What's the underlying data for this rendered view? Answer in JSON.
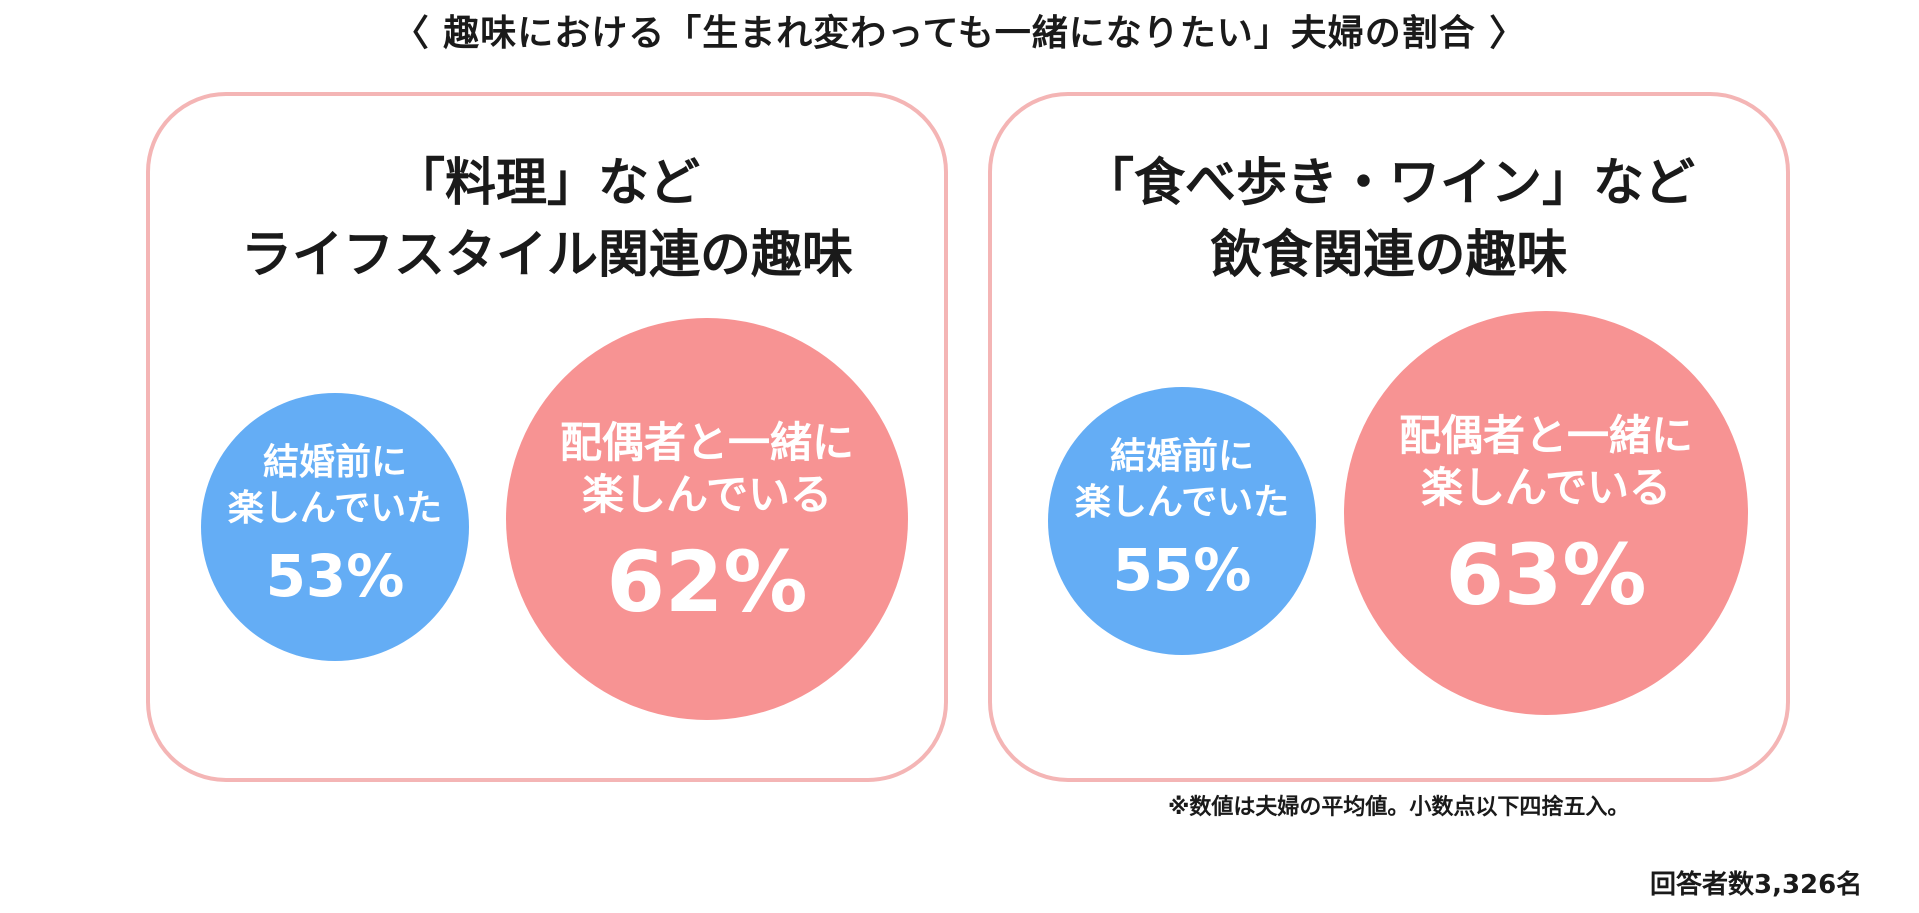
{
  "header": {
    "title": "〈 趣味における「生まれ変わっても一緒になりたい」夫婦の割合 〉"
  },
  "panels": [
    {
      "title_line1": "「料理」など",
      "title_line2": "ライフスタイル関連の趣味",
      "before_marriage": {
        "label_line1": "結婚前に",
        "label_line2": "楽しんでいた",
        "value_text": "53%"
      },
      "with_spouse": {
        "label_line1": "配偶者と一緒に",
        "label_line2": "楽しんでいる",
        "value_text": "62%"
      }
    },
    {
      "title_line1": "「食べ歩き・ワイン」など",
      "title_line2": "飲食関連の趣味",
      "before_marriage": {
        "label_line1": "結婚前に",
        "label_line2": "楽しんでいた",
        "value_text": "55%"
      },
      "with_spouse": {
        "label_line1": "配偶者と一緒に",
        "label_line2": "楽しんでいる",
        "value_text": "63%"
      }
    }
  ],
  "footer": {
    "note": "※数値は夫婦の平均値。小数点以下四捨五入。",
    "respondents": "回答者数3,326名"
  },
  "colors": {
    "blue_bubble": "#64adf5",
    "pink_bubble": "#f79393",
    "panel_border": "#f4b5b5"
  },
  "chart_data": {
    "type": "bubble",
    "unit": "%",
    "groups": [
      {
        "category": "「料理」など ライフスタイル関連の趣味",
        "points": [
          {
            "label": "結婚前に楽しんでいた",
            "value": 53
          },
          {
            "label": "配偶者と一緒に楽しんでいる",
            "value": 62
          }
        ]
      },
      {
        "category": "「食べ歩き・ワイン」など 飲食関連の趣味",
        "points": [
          {
            "label": "結婚前に楽しんでいた",
            "value": 55
          },
          {
            "label": "配偶者と一緒に楽しんでいる",
            "value": 63
          }
        ]
      }
    ]
  }
}
